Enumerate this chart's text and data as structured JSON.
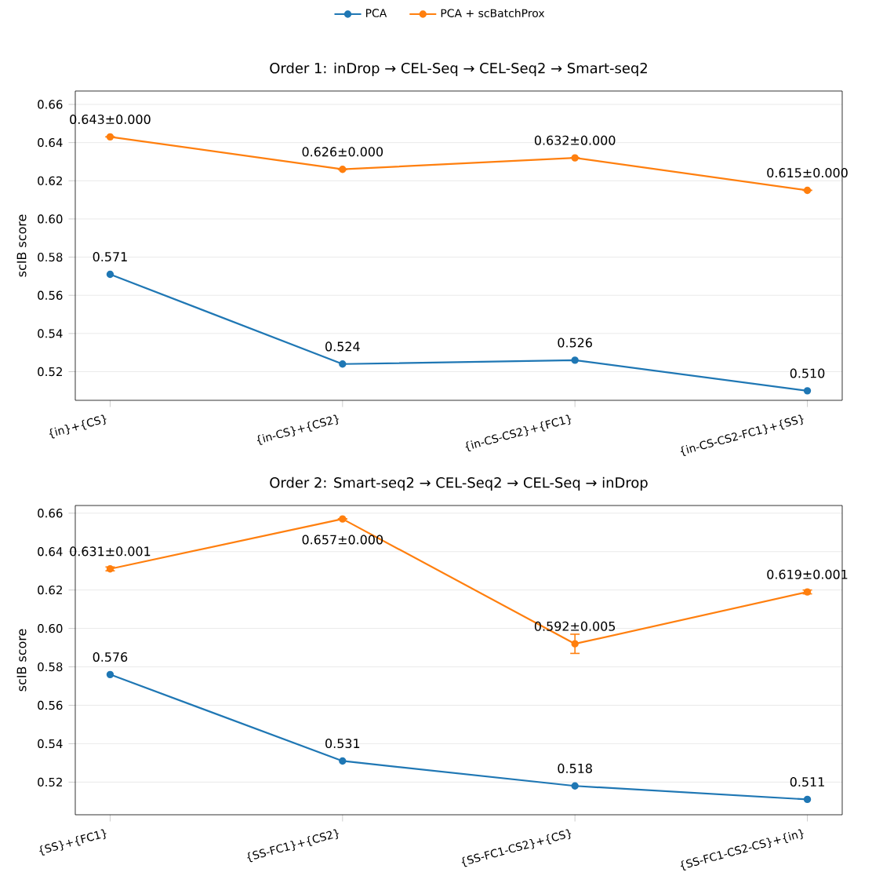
{
  "chart_data": [
    {
      "type": "line",
      "title": "Order 1: inDrop → CEL-Seq → CEL-Seq2 → Smart-seq2",
      "ylabel": "scIB score",
      "categories": [
        "{in}+{CS}",
        "{in-CS}+{CS2}",
        "{in-CS-CS2}+{FC1}",
        "{in-CS-CS2-FC1}+{SS}"
      ],
      "series": [
        {
          "name": "PCA",
          "color": "#1f77b4",
          "values": [
            0.571,
            0.524,
            0.526,
            0.51
          ],
          "value_labels": [
            "0.571",
            "0.524",
            "0.526",
            "0.510"
          ]
        },
        {
          "name": "PCA + scBatchProx",
          "color": "#ff7f0e",
          "values": [
            0.643,
            0.626,
            0.632,
            0.615
          ],
          "errors": [
            0.0,
            0.0,
            0.0,
            0.0
          ],
          "value_labels": [
            "0.643±0.000",
            "0.626±0.000",
            "0.632±0.000",
            "0.615±0.000"
          ]
        }
      ],
      "ylim": [
        0.505,
        0.667
      ],
      "yticks": [
        0.52,
        0.54,
        0.56,
        0.58,
        {
          "value": 0.6,
          "label": "0.60"
        },
        0.62,
        0.64,
        0.66
      ],
      "grid": "y",
      "legend": "top",
      "marker": "circle"
    },
    {
      "type": "line",
      "title": "Order 2: Smart-seq2 → CEL-Seq2 → CEL-Seq → inDrop",
      "ylabel": "scIB score",
      "categories": [
        "{SS}+{FC1}",
        "{SS-FC1}+{CS2}",
        "{SS-FC1-CS2}+{CS}",
        "{SS-FC1-CS2-CS}+{in}"
      ],
      "series": [
        {
          "color": "#1f77b4",
          "values": [
            0.576,
            0.531,
            0.518,
            0.511
          ],
          "value_labels": [
            "0.576",
            "0.531",
            "0.518",
            "0.511"
          ]
        },
        {
          "color": "#ff7f0e",
          "values": [
            0.631,
            0.657,
            0.592,
            0.619
          ],
          "errors": [
            0.001,
            0.0,
            0.005,
            0.001
          ],
          "value_labels": [
            "0.631±0.001",
            "0.657±0.000",
            "0.592±0.005",
            "0.619±0.001"
          ]
        }
      ],
      "ylim": [
        0.503,
        0.664
      ],
      "yticks": [
        0.52,
        0.54,
        0.56,
        0.58,
        {
          "value": 0.6,
          "label": "0.60"
        },
        0.62,
        0.64,
        0.66
      ],
      "grid": "y",
      "marker": "circle"
    }
  ]
}
